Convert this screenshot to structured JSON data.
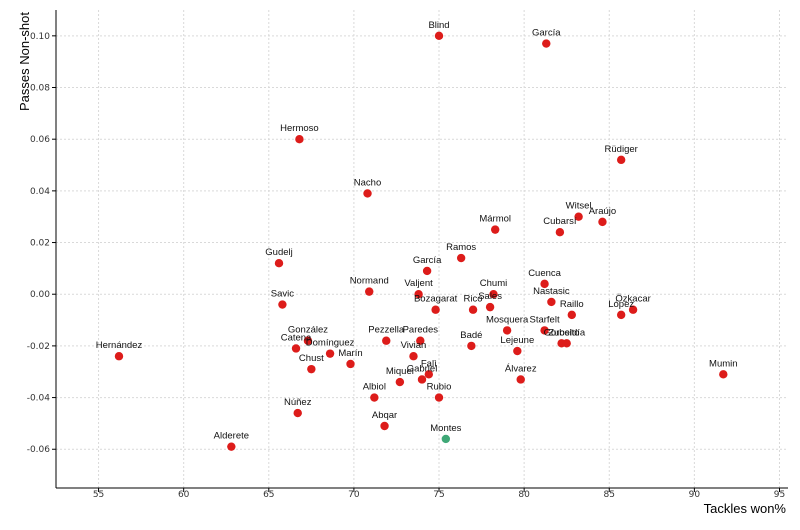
{
  "chart_data": {
    "type": "scatter",
    "xlabel": "Tackles won%",
    "ylabel": "Passes Non-shot",
    "xlim": [
      52.5,
      95.5
    ],
    "ylim": [
      -0.075,
      0.11
    ],
    "x_ticks": [
      55,
      60,
      65,
      70,
      75,
      80,
      85,
      90,
      95
    ],
    "y_ticks": [
      -0.06,
      -0.04,
      -0.02,
      0.0,
      0.02,
      0.04,
      0.06,
      0.08,
      0.1
    ],
    "y_tick_labels": [
      "-0.06",
      "-0.04",
      "-0.02",
      "0.00",
      "0.02",
      "0.04",
      "0.06",
      "0.08",
      "0.10"
    ],
    "grid": true,
    "colors": {
      "default": "#dd1c1a",
      "highlight": "#3fa877"
    },
    "points": [
      {
        "name": "Blind",
        "x": 75.0,
        "y": 0.1
      },
      {
        "name": "García",
        "x": 81.3,
        "y": 0.097
      },
      {
        "name": "Hermoso",
        "x": 66.8,
        "y": 0.06
      },
      {
        "name": "Rüdiger",
        "x": 85.7,
        "y": 0.052
      },
      {
        "name": "Nacho",
        "x": 70.8,
        "y": 0.039
      },
      {
        "name": "Witsel",
        "x": 83.2,
        "y": 0.03
      },
      {
        "name": "Araújo",
        "x": 84.6,
        "y": 0.028
      },
      {
        "name": "Mármol",
        "x": 78.3,
        "y": 0.025
      },
      {
        "name": "Cubarsí",
        "x": 82.1,
        "y": 0.024
      },
      {
        "name": "Ramos",
        "x": 76.3,
        "y": 0.014
      },
      {
        "name": "Gudelj",
        "x": 65.6,
        "y": 0.012
      },
      {
        "name": "García",
        "x": 74.3,
        "y": 0.009
      },
      {
        "name": "Cuenca",
        "x": 81.2,
        "y": 0.004
      },
      {
        "name": "Normand",
        "x": 70.9,
        "y": 0.001
      },
      {
        "name": "Valjent",
        "x": 73.8,
        "y": 0.0
      },
      {
        "name": "Chumi",
        "x": 78.2,
        "y": 0.0
      },
      {
        "name": "Savic",
        "x": 65.8,
        "y": -0.004
      },
      {
        "name": "Bozagarat",
        "x": 74.8,
        "y": -0.006
      },
      {
        "name": "Rico",
        "x": 77.0,
        "y": -0.006
      },
      {
        "name": "Sales",
        "x": 78.0,
        "y": -0.005
      },
      {
        "name": "Nastasic",
        "x": 81.6,
        "y": -0.003
      },
      {
        "name": "Raillo",
        "x": 82.8,
        "y": -0.008
      },
      {
        "name": "Özkacar",
        "x": 86.4,
        "y": -0.006
      },
      {
        "name": "López",
        "x": 85.7,
        "y": -0.008
      },
      {
        "name": "González",
        "x": 67.3,
        "y": -0.018
      },
      {
        "name": "Catena",
        "x": 66.6,
        "y": -0.021
      },
      {
        "name": "Domínguez",
        "x": 68.6,
        "y": -0.023
      },
      {
        "name": "Pezzella",
        "x": 71.9,
        "y": -0.018
      },
      {
        "name": "Paredes",
        "x": 73.9,
        "y": -0.018
      },
      {
        "name": "Mosquera",
        "x": 79.0,
        "y": -0.014
      },
      {
        "name": "Starfelt",
        "x": 81.2,
        "y": -0.014
      },
      {
        "name": "Gorosito",
        "x": 82.2,
        "y": -0.019
      },
      {
        "name": "Zubeldía",
        "x": 82.5,
        "y": -0.019
      },
      {
        "name": "Badé",
        "x": 76.9,
        "y": -0.02
      },
      {
        "name": "Lejeune",
        "x": 79.6,
        "y": -0.022
      },
      {
        "name": "Hernández",
        "x": 56.2,
        "y": -0.024
      },
      {
        "name": "Chust",
        "x": 67.5,
        "y": -0.029
      },
      {
        "name": "Marín",
        "x": 69.8,
        "y": -0.027
      },
      {
        "name": "Vivian",
        "x": 73.5,
        "y": -0.024
      },
      {
        "name": "Mumin",
        "x": 91.7,
        "y": -0.031
      },
      {
        "name": "Falì",
        "x": 74.4,
        "y": -0.031
      },
      {
        "name": "Gabriel",
        "x": 74.0,
        "y": -0.033
      },
      {
        "name": "Miquel",
        "x": 72.7,
        "y": -0.034
      },
      {
        "name": "Álvarez",
        "x": 79.8,
        "y": -0.033
      },
      {
        "name": "Albiol",
        "x": 71.2,
        "y": -0.04
      },
      {
        "name": "Rubio",
        "x": 75.0,
        "y": -0.04
      },
      {
        "name": "Núñez",
        "x": 66.7,
        "y": -0.046
      },
      {
        "name": "Abqar",
        "x": 71.8,
        "y": -0.051
      },
      {
        "name": "Montes",
        "x": 75.4,
        "y": -0.056,
        "highlight": true
      },
      {
        "name": "Alderete",
        "x": 62.8,
        "y": -0.059
      }
    ]
  }
}
